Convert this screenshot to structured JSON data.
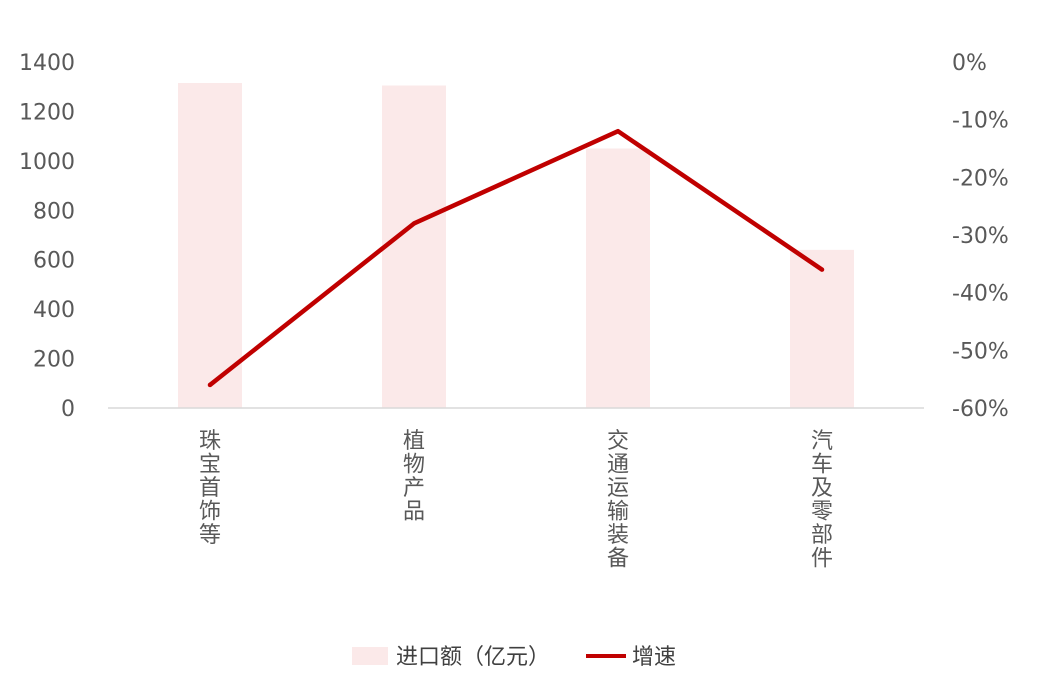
{
  "chart_data": {
    "type": "bar",
    "categories": [
      "珠宝首饰等",
      "植物产品",
      "交通运输装备",
      "汽车及零部件"
    ],
    "series": [
      {
        "name": "进口额（亿元）",
        "type": "bar",
        "axis": "left",
        "color": "#fbe9e9",
        "values": [
          1315,
          1305,
          1050,
          640
        ]
      },
      {
        "name": "增速",
        "type": "line",
        "axis": "right",
        "color": "#c00000",
        "values": [
          -0.56,
          -0.28,
          -0.12,
          -0.36
        ]
      }
    ],
    "y_left": {
      "ylim": [
        0,
        1400
      ],
      "ticks": [
        "0",
        "200",
        "400",
        "600",
        "800",
        "1000",
        "1200",
        "1400"
      ]
    },
    "y_right": {
      "ylim": [
        -0.6,
        0
      ],
      "ticks": [
        "-60%",
        "-50%",
        "-40%",
        "-30%",
        "-20%",
        "-10%",
        "0%"
      ]
    },
    "legend_position": "bottom",
    "grid": false
  }
}
